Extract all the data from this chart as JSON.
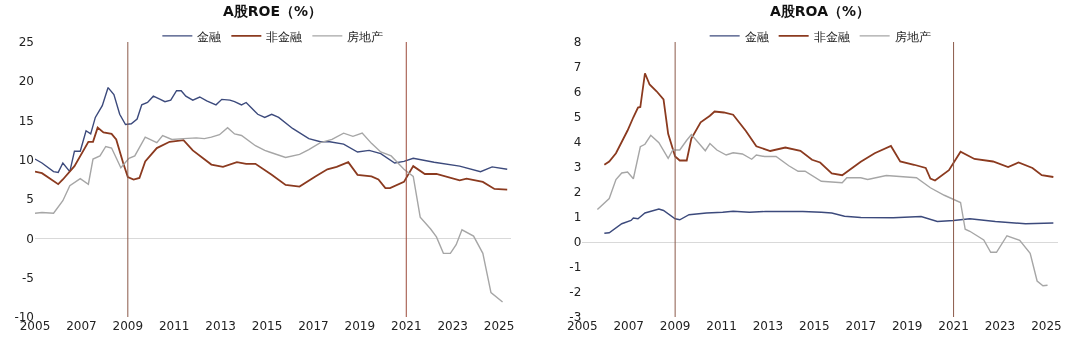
{
  "chart_data": [
    {
      "type": "line",
      "title": "A股ROE（%）",
      "xlim": [
        2005,
        2025.5
      ],
      "xticks": [
        2005,
        2007,
        2009,
        2011,
        2013,
        2015,
        2017,
        2019,
        2021,
        2023,
        2025
      ],
      "ylim": [
        -10,
        25
      ],
      "yticks": [
        -10,
        -5,
        0,
        5,
        10,
        15,
        20,
        25
      ],
      "grid": false,
      "legend": "top",
      "marker": "none",
      "line_style": "solid",
      "ref_lines": [
        {
          "axis": "x",
          "value": 2009,
          "color": "#8b5a4a"
        },
        {
          "axis": "x",
          "value": 2021,
          "color": "#9b4a3a"
        }
      ],
      "series": [
        {
          "name": "金融",
          "color": "#3c4a7c",
          "x": [
            2005.0,
            2005.3,
            2005.8,
            2006.0,
            2006.2,
            2006.5,
            2006.7,
            2006.95,
            2007.2,
            2007.4,
            2007.6,
            2007.9,
            2008.15,
            2008.4,
            2008.65,
            2008.9,
            2009.15,
            2009.4,
            2009.6,
            2009.85,
            2010.1,
            2010.4,
            2010.6,
            2010.85,
            2011.1,
            2011.3,
            2011.5,
            2011.8,
            2012.1,
            2012.4,
            2012.8,
            2013.05,
            2013.4,
            2013.6,
            2013.9,
            2014.1,
            2014.3,
            2014.6,
            2014.9,
            2015.2,
            2015.5,
            2016.1,
            2016.8,
            2017.3,
            2017.7,
            2018.3,
            2018.9,
            2019.4,
            2019.9,
            2020.5,
            2020.9,
            2021.3,
            2022.2,
            2023.3,
            2024.2,
            2024.7,
            2025.35
          ],
          "values": [
            10.1,
            9.6,
            8.5,
            8.4,
            9.6,
            8.5,
            11.1,
            11.1,
            13.7,
            13.3,
            15.4,
            16.9,
            19.2,
            18.3,
            15.8,
            14.5,
            14.6,
            15.2,
            17.0,
            17.3,
            18.1,
            17.7,
            17.4,
            17.6,
            18.8,
            18.8,
            18.1,
            17.6,
            18.0,
            17.5,
            17.0,
            17.7,
            17.6,
            17.4,
            17.0,
            17.3,
            16.7,
            15.8,
            15.4,
            15.8,
            15.4,
            14.0,
            12.7,
            12.3,
            12.3,
            12.0,
            11.0,
            11.2,
            10.8,
            9.6,
            9.8,
            10.2,
            9.7,
            9.2,
            8.5,
            9.1,
            8.8
          ]
        },
        {
          "name": "非金融",
          "color": "#8b3a1f",
          "x": [
            2005.0,
            2005.3,
            2006.0,
            2006.2,
            2006.7,
            2007.3,
            2007.5,
            2007.7,
            2007.95,
            2008.3,
            2008.5,
            2008.8,
            2009.0,
            2009.25,
            2009.5,
            2009.75,
            2010.25,
            2010.8,
            2011.4,
            2011.8,
            2012.6,
            2013.1,
            2013.7,
            2014.1,
            2014.5,
            2015.2,
            2015.8,
            2016.4,
            2017.1,
            2017.6,
            2018.0,
            2018.5,
            2018.9,
            2019.5,
            2019.8,
            2020.1,
            2020.3,
            2020.9,
            2021.3,
            2021.8,
            2022.3,
            2023.3,
            2023.6,
            2024.3,
            2024.8,
            2025.35
          ],
          "values": [
            8.5,
            8.3,
            6.9,
            7.5,
            9.2,
            12.3,
            12.3,
            14.1,
            13.5,
            13.3,
            12.6,
            9.6,
            7.8,
            7.5,
            7.7,
            9.8,
            11.5,
            12.3,
            12.5,
            11.2,
            9.4,
            9.1,
            9.7,
            9.5,
            9.5,
            8.1,
            6.8,
            6.6,
            7.9,
            8.8,
            9.1,
            9.7,
            8.1,
            7.9,
            7.5,
            6.4,
            6.4,
            7.2,
            9.2,
            8.2,
            8.2,
            7.4,
            7.6,
            7.2,
            6.3,
            6.2
          ]
        },
        {
          "name": "房地产",
          "color": "#a6a6a6",
          "x": [
            2005.0,
            2005.3,
            2005.8,
            2006.2,
            2006.5,
            2006.95,
            2007.3,
            2007.5,
            2007.8,
            2008.05,
            2008.3,
            2008.7,
            2009.05,
            2009.3,
            2009.75,
            2010.25,
            2010.5,
            2010.9,
            2011.4,
            2011.95,
            2012.3,
            2012.6,
            2012.95,
            2013.3,
            2013.6,
            2013.9,
            2014.5,
            2014.9,
            2015.1,
            2015.8,
            2016.4,
            2016.8,
            2017.3,
            2017.8,
            2018.3,
            2018.7,
            2019.1,
            2019.5,
            2019.9,
            2020.35,
            2020.9,
            2021.3,
            2021.6,
            2022.05,
            2022.3,
            2022.6,
            2022.9,
            2023.15,
            2023.4,
            2023.9,
            2024.3,
            2024.65,
            2025.15
          ],
          "values": [
            3.2,
            3.3,
            3.2,
            4.8,
            6.7,
            7.6,
            6.9,
            10.1,
            10.5,
            11.7,
            11.5,
            9.0,
            10.2,
            10.5,
            12.9,
            12.2,
            13.1,
            12.6,
            12.7,
            12.8,
            12.7,
            12.9,
            13.2,
            14.1,
            13.3,
            13.1,
            11.8,
            11.2,
            11.0,
            10.3,
            10.7,
            11.3,
            12.2,
            12.6,
            13.4,
            13.0,
            13.4,
            12.1,
            11.0,
            10.5,
            8.8,
            7.9,
            2.7,
            1.2,
            0.2,
            -1.9,
            -1.9,
            -0.8,
            1.1,
            0.3,
            -1.9,
            -6.9,
            -8.1
          ]
        }
      ]
    },
    {
      "type": "line",
      "title": "A股ROA（%）",
      "xlim": [
        2005,
        2025.5
      ],
      "xticks": [
        2005,
        2007,
        2009,
        2011,
        2013,
        2015,
        2017,
        2019,
        2021,
        2023,
        2025
      ],
      "ylim": [
        -3,
        8
      ],
      "yticks": [
        -3,
        -2,
        -1,
        0,
        1,
        2,
        3,
        4,
        5,
        6,
        7,
        8
      ],
      "grid": false,
      "legend": "top",
      "marker": "none",
      "line_style": "solid",
      "ref_lines": [
        {
          "axis": "x",
          "value": 2009,
          "color": "#8b5a4a"
        },
        {
          "axis": "x",
          "value": 2021,
          "color": "#8b5a4a"
        }
      ],
      "series": [
        {
          "name": "金融",
          "color": "#3c4a7c",
          "x": [
            2005.95,
            2006.16,
            2006.7,
            2007.1,
            2007.2,
            2007.4,
            2007.7,
            2008.3,
            2008.5,
            2009.0,
            2009.2,
            2009.6,
            2010.35,
            2011.05,
            2011.5,
            2012.2,
            2012.9,
            2013.6,
            2014.5,
            2015.3,
            2015.75,
            2016.3,
            2017.0,
            2018.4,
            2019.6,
            2020.3,
            2021.0,
            2021.7,
            2022.8,
            2024.1,
            2025.3
          ],
          "values": [
            0.35,
            0.37,
            0.73,
            0.86,
            0.96,
            0.93,
            1.16,
            1.32,
            1.26,
            0.93,
            0.89,
            1.09,
            1.16,
            1.19,
            1.23,
            1.19,
            1.22,
            1.22,
            1.22,
            1.19,
            1.16,
            1.03,
            0.98,
            0.97,
            1.02,
            0.82,
            0.86,
            0.93,
            0.82,
            0.73,
            0.76
          ]
        },
        {
          "name": "非金融",
          "color": "#8b3a1f",
          "x": [
            2005.95,
            2006.16,
            2006.45,
            2006.95,
            2007.2,
            2007.4,
            2007.5,
            2007.7,
            2007.9,
            2008.2,
            2008.5,
            2008.7,
            2009.0,
            2009.2,
            2009.5,
            2009.7,
            2010.1,
            2010.5,
            2010.7,
            2011.1,
            2011.5,
            2012.05,
            2012.5,
            2013.1,
            2013.75,
            2014.4,
            2014.9,
            2015.25,
            2015.75,
            2016.2,
            2017.0,
            2017.6,
            2018.3,
            2018.7,
            2019.3,
            2019.8,
            2020.0,
            2020.2,
            2020.8,
            2021.3,
            2021.9,
            2022.7,
            2023.35,
            2023.8,
            2024.4,
            2024.8,
            2025.3
          ],
          "values": [
            3.09,
            3.22,
            3.55,
            4.46,
            4.99,
            5.38,
            5.4,
            6.75,
            6.3,
            6.03,
            5.7,
            4.33,
            3.42,
            3.26,
            3.26,
            4.14,
            4.79,
            5.05,
            5.22,
            5.18,
            5.09,
            4.44,
            3.83,
            3.64,
            3.78,
            3.65,
            3.29,
            3.18,
            2.74,
            2.67,
            3.21,
            3.55,
            3.84,
            3.22,
            3.09,
            2.96,
            2.54,
            2.46,
            2.87,
            3.61,
            3.32,
            3.22,
            3.0,
            3.18,
            2.96,
            2.67,
            2.6
          ]
        },
        {
          "name": "房地产",
          "color": "#a6a6a6",
          "x": [
            2005.65,
            2006.16,
            2006.45,
            2006.7,
            2006.95,
            2007.2,
            2007.5,
            2007.7,
            2007.95,
            2008.3,
            2008.7,
            2008.9,
            2009.2,
            2009.5,
            2009.7,
            2010.3,
            2010.5,
            2010.8,
            2011.2,
            2011.5,
            2011.9,
            2012.3,
            2012.5,
            2012.85,
            2013.35,
            2013.9,
            2014.3,
            2014.6,
            2015.3,
            2016.2,
            2016.4,
            2017.0,
            2017.3,
            2018.1,
            2019.4,
            2020.0,
            2020.6,
            2021.3,
            2021.5,
            2021.7,
            2022.3,
            2022.6,
            2022.85,
            2023.3,
            2023.85,
            2024.3,
            2024.6,
            2024.85,
            2025.05
          ],
          "values": [
            1.3,
            1.74,
            2.5,
            2.76,
            2.8,
            2.53,
            3.81,
            3.91,
            4.27,
            3.97,
            3.35,
            3.68,
            3.68,
            4.07,
            4.3,
            3.65,
            3.94,
            3.68,
            3.48,
            3.57,
            3.52,
            3.31,
            3.48,
            3.42,
            3.42,
            3.05,
            2.83,
            2.83,
            2.43,
            2.37,
            2.57,
            2.57,
            2.5,
            2.66,
            2.57,
            2.17,
            1.87,
            1.58,
            0.51,
            0.43,
            0.08,
            -0.41,
            -0.41,
            0.25,
            0.07,
            -0.45,
            -1.56,
            -1.75,
            -1.73
          ]
        }
      ]
    }
  ]
}
